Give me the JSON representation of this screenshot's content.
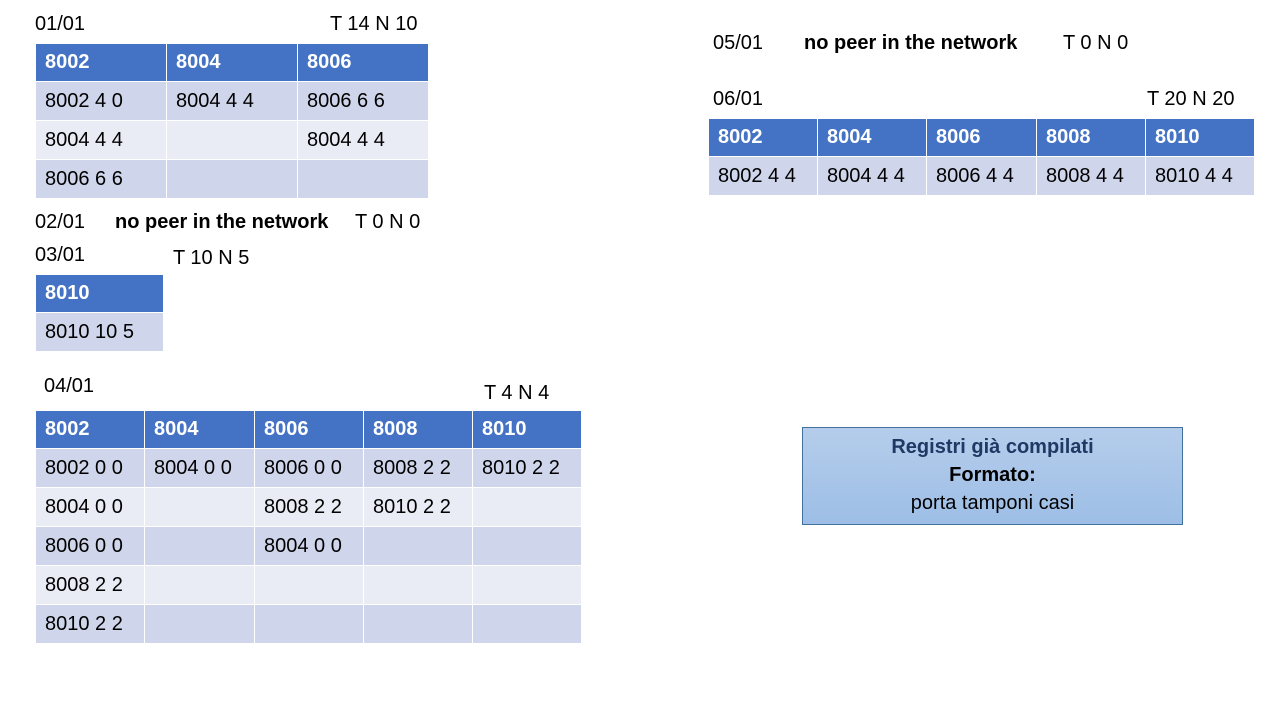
{
  "day1": {
    "date": "01/01",
    "stats": "T 14 N 10",
    "headers": [
      "8002",
      "8004",
      "8006"
    ],
    "rows": [
      [
        "8002 4 0",
        "8004 4 4",
        "8006 6 6"
      ],
      [
        "8004 4 4",
        "",
        "8004 4 4"
      ],
      [
        "8006 6 6",
        "",
        ""
      ]
    ]
  },
  "day2": {
    "date": "02/01",
    "message": "no peer in the network",
    "stats": "T 0 N 0"
  },
  "day3": {
    "date": "03/01",
    "stats": "T 10 N 5",
    "headers": [
      "8010"
    ],
    "rows": [
      [
        "8010 10 5"
      ]
    ]
  },
  "day4": {
    "date": "04/01",
    "stats": "T 4 N 4",
    "headers": [
      "8002",
      "8004",
      "8006",
      "8008",
      "8010"
    ],
    "rows": [
      [
        "8002 0 0",
        "8004 0 0",
        "8006 0 0",
        "8008 2 2",
        "8010 2 2"
      ],
      [
        "8004 0 0",
        "",
        "8008 2 2",
        "8010 2 2",
        ""
      ],
      [
        "8006 0 0",
        "",
        "8004 0 0",
        "",
        ""
      ],
      [
        "8008 2 2",
        "",
        "",
        "",
        ""
      ],
      [
        "8010 2 2",
        "",
        "",
        "",
        ""
      ]
    ]
  },
  "day5": {
    "date": "05/01",
    "message": "no peer in the network",
    "stats": "T 0 N 0"
  },
  "day6": {
    "date": "06/01",
    "stats": "T 20 N 20",
    "headers": [
      "8002",
      "8004",
      "8006",
      "8008",
      "8010"
    ],
    "rows": [
      [
        "8002 4 4",
        "8004 4 4",
        "8006 4 4",
        "8008 4 4",
        "8010 4 4"
      ]
    ]
  },
  "note": {
    "line1": "Registri già compilati",
    "line2": "Formato:",
    "line3": "porta tamponi casi"
  },
  "colors": {
    "header": "#4472C4",
    "row_dark": "#CFD5EA",
    "row_light": "#E9EBF5",
    "note_fill": "#A9C4E8",
    "note_border": "#41719C"
  }
}
